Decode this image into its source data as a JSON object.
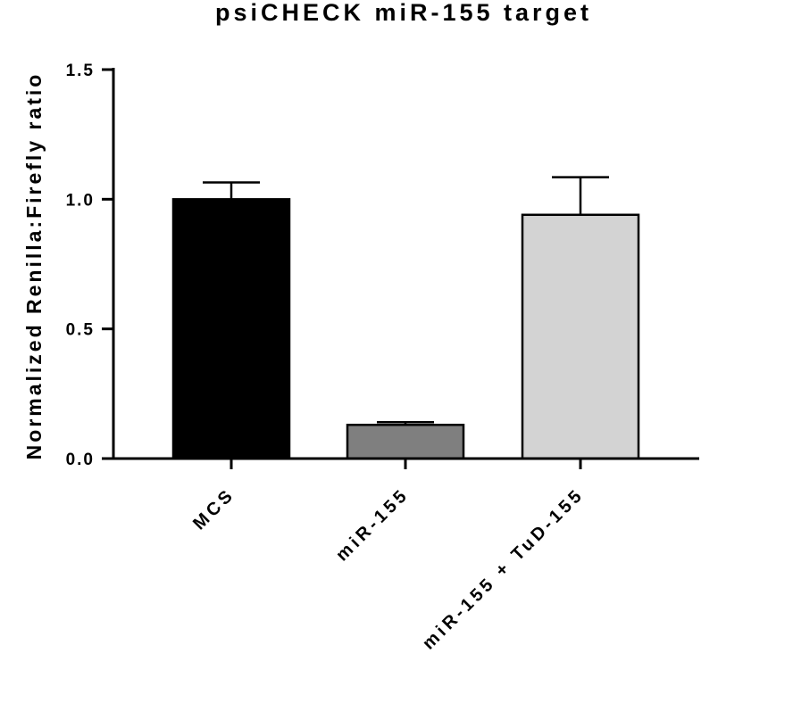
{
  "chart_data": {
    "type": "bar",
    "title": "psiCHECK miR-155 target",
    "xlabel": "",
    "ylabel": "Normalized Renilla:Firefly ratio",
    "ylim": [
      0,
      1.5
    ],
    "yticks": [
      0.0,
      0.5,
      1.0,
      1.5
    ],
    "ytick_labels": [
      "0.0",
      "0.5",
      "1.0",
      "1.5"
    ],
    "categories": [
      "MCS",
      "miR-155",
      "miR-155 + TuD-155"
    ],
    "values": [
      1.0,
      0.13,
      0.94
    ],
    "error_upper": [
      0.065,
      0.01,
      0.145
    ],
    "bar_colors": [
      "#000000",
      "#7f7f7f",
      "#d3d3d3"
    ],
    "grid": false,
    "legend": "none"
  }
}
